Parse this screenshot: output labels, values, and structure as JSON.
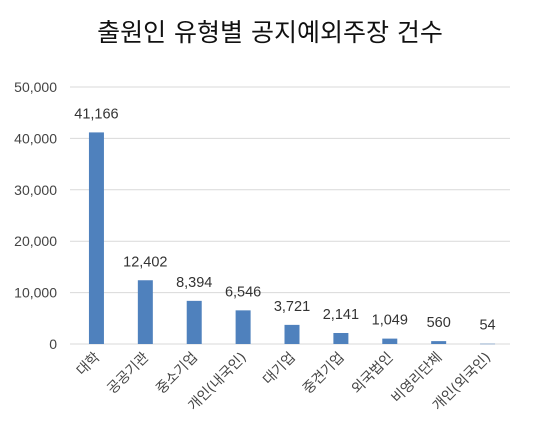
{
  "chart_data": {
    "type": "bar",
    "title": "출원인 유형별 공지예외주장 건수",
    "categories": [
      "대학",
      "공공기관",
      "중소기업",
      "개인(내국인)",
      "대기업",
      "중견기업",
      "외국법인",
      "비영리단체",
      "개인(외국인)"
    ],
    "values": [
      41166,
      12402,
      8394,
      6546,
      3721,
      2141,
      1049,
      560,
      54
    ],
    "data_labels": [
      "41,166",
      "12,402",
      "8,394",
      "6,546",
      "3,721",
      "2,141",
      "1,049",
      "560",
      "54"
    ],
    "yticks": [
      0,
      10000,
      20000,
      30000,
      40000,
      50000
    ],
    "ytick_labels": [
      "0",
      "10,000",
      "20,000",
      "30,000",
      "40,000",
      "50,000"
    ],
    "ylim": [
      0,
      50000
    ],
    "grid": true,
    "legend": "none",
    "bar_color": "#4f81bd"
  }
}
